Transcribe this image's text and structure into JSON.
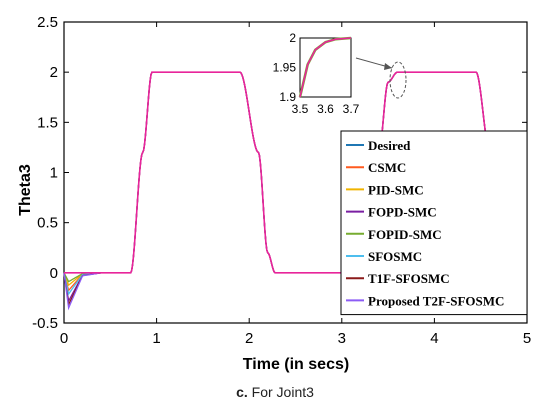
{
  "chart_data": {
    "type": "line",
    "title": "",
    "xlabel": "Time (in secs)",
    "ylabel": "Theta3",
    "xlim": [
      0,
      5
    ],
    "ylim": [
      -0.5,
      2.5
    ],
    "xticks": [
      "0",
      "1",
      "2",
      "3",
      "4",
      "5"
    ],
    "yticks": [
      "-0.5",
      "0",
      "0.5",
      "1",
      "1.5",
      "2",
      "2.5"
    ],
    "grid": false,
    "legend_position": "bottom-right",
    "series": [
      {
        "name": "Desired",
        "color": "#1f77b4"
      },
      {
        "name": "CSMC",
        "color": "#ff5a1f"
      },
      {
        "name": "PID-SMC",
        "color": "#f0b400"
      },
      {
        "name": "FOPD-SMC",
        "color": "#7a1fa2"
      },
      {
        "name": "FOPID-SMC",
        "color": "#77ac30"
      },
      {
        "name": "SFOSMC",
        "color": "#4dbeee"
      },
      {
        "name": "T1F-SFOSMC",
        "color": "#8b1a1a"
      },
      {
        "name": "Proposed T2F-SFOSMC",
        "color": "#8c5cf5"
      }
    ],
    "highlight_series_color": "#e8259a",
    "waveform": {
      "description_points_x": [
        0,
        0.72,
        0.85,
        0.95,
        1.9,
        2.1,
        2.2,
        2.28,
        3.3,
        3.4,
        3.5,
        3.6,
        4.45,
        4.6,
        4.75,
        5
      ],
      "description_points_y": [
        0,
        0,
        1.2,
        2,
        2,
        1.2,
        0.2,
        0,
        0,
        1.2,
        1.9,
        2,
        2,
        1.2,
        0.1,
        0
      ]
    },
    "initial_dip": {
      "x": [
        0,
        0.05,
        0.2,
        0.4
      ],
      "y": [
        0,
        -0.35,
        -0.03,
        0
      ]
    },
    "inset": {
      "xlim": [
        3.5,
        3.7
      ],
      "ylim": [
        1.9,
        2
      ],
      "xticks": [
        "3.5",
        "3.6",
        "3.7"
      ],
      "yticks": [
        "1.9",
        "1.95",
        "2"
      ],
      "curve_x": [
        3.5,
        3.53,
        3.56,
        3.6,
        3.64,
        3.7
      ],
      "curve_y": [
        1.9,
        1.955,
        1.98,
        1.993,
        1.998,
        2.0
      ]
    }
  },
  "caption": {
    "prefix": "c.",
    "text": "For Joint3"
  }
}
